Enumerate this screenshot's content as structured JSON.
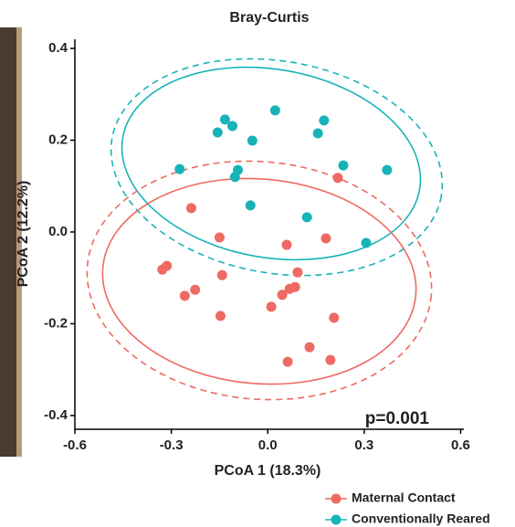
{
  "chart_data": {
    "type": "scatter",
    "title": "Bray-Curtis",
    "x_label": "PCoA 1 (18.3%)",
    "y_label": "PCoA 2 (12.2%)",
    "annotation": "p=0.001",
    "xlim": [
      -0.6,
      0.61
    ],
    "ylim": [
      -0.43,
      0.42
    ],
    "xticks": [
      -0.6,
      -0.3,
      {
        "value": 0,
        "label": "0.0"
      },
      0.3,
      0.6
    ],
    "yticks": [
      -0.4,
      -0.2,
      {
        "value": 0,
        "label": "0.0"
      },
      0.2,
      0.4
    ],
    "series": [
      {
        "name": "Maternal Contact",
        "color": "#ee6a62",
        "x": [
          -0.238,
          0.218,
          -0.15,
          0.059,
          0.181,
          -0.314,
          -0.328,
          -0.142,
          -0.226,
          -0.258,
          0.093,
          0.085,
          0.068,
          0.045,
          0.011,
          -0.147,
          0.206,
          0.13,
          0.195,
          0.062
        ],
        "y": [
          0.052,
          0.118,
          -0.012,
          -0.028,
          -0.014,
          -0.074,
          -0.082,
          -0.094,
          -0.126,
          -0.139,
          -0.088,
          -0.12,
          -0.124,
          -0.137,
          -0.163,
          -0.183,
          -0.187,
          -0.251,
          -0.279,
          -0.283
        ]
      },
      {
        "name": "Conventionally Reared",
        "color": "#18b3b8",
        "x": [
          -0.274,
          -0.133,
          -0.11,
          -0.156,
          -0.048,
          0.023,
          0.175,
          0.156,
          -0.093,
          -0.102,
          -0.054,
          0.122,
          0.235,
          0.371,
          0.306
        ],
        "y": [
          0.137,
          0.245,
          0.231,
          0.217,
          0.199,
          0.265,
          0.243,
          0.215,
          0.135,
          0.12,
          0.058,
          0.032,
          0.145,
          0.135,
          -0.024
        ]
      }
    ]
  }
}
